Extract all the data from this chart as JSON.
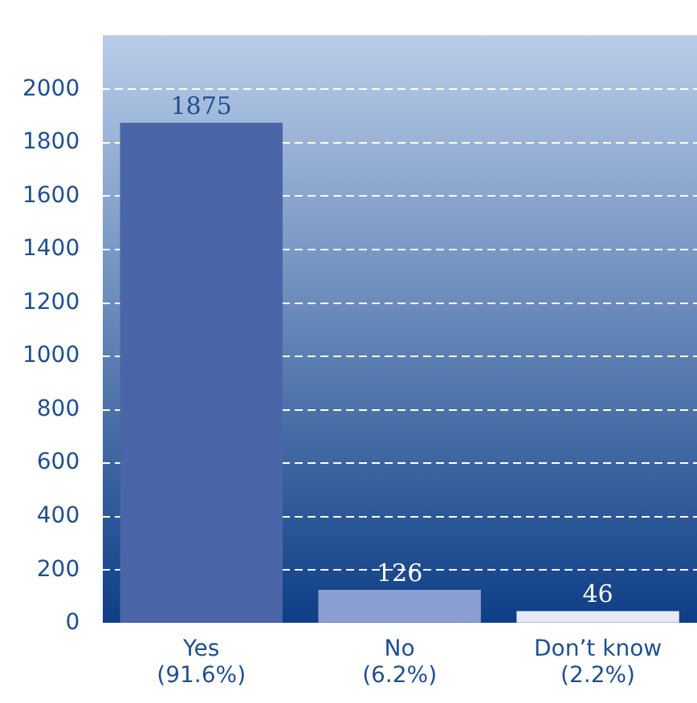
{
  "chart_data": {
    "type": "bar",
    "categories": [
      "Yes\n(91.6%)",
      "No\n(6.2%)",
      "Don’t know\n(2.2%)"
    ],
    "values": [
      1875,
      126,
      46
    ],
    "colors": [
      "#4a66a8",
      "#8a9ed2",
      "#e6e8f3"
    ],
    "ylim": [
      0,
      2200
    ],
    "yticks": [
      0,
      200,
      400,
      600,
      800,
      1000,
      1200,
      1400,
      1600,
      1800,
      2000
    ],
    "grid": "y",
    "data_labels": true
  }
}
